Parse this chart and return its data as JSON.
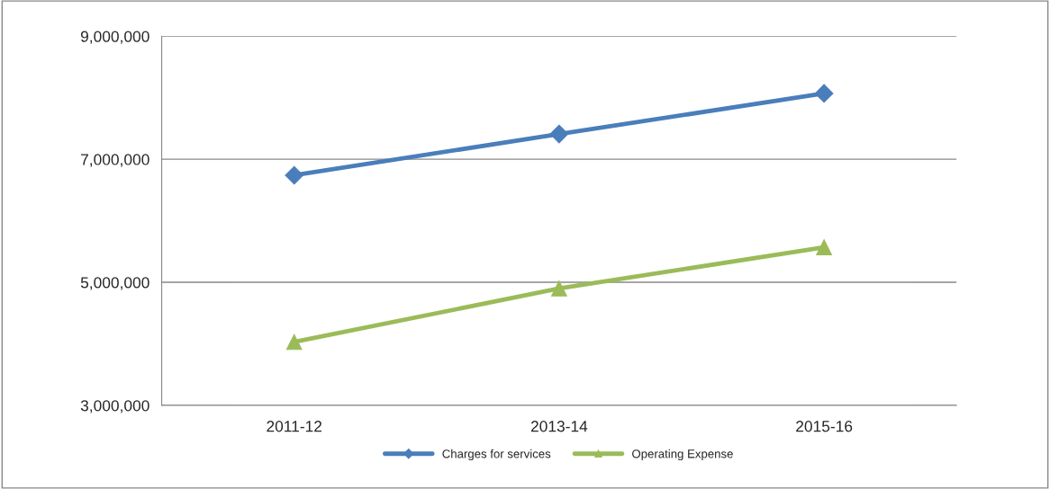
{
  "chart_data": {
    "type": "line",
    "categories": [
      "2011-12",
      "2013-14",
      "2015-16"
    ],
    "series": [
      {
        "name": "Charges for services",
        "color": "#4a7ebb",
        "marker": "diamond",
        "values": [
          6740000,
          7410000,
          8070000
        ]
      },
      {
        "name": "Operating Expense",
        "color": "#9bbb59",
        "marker": "triangle",
        "values": [
          4030000,
          4900000,
          5570000
        ]
      }
    ],
    "ylim": [
      3000000,
      9000000
    ],
    "yticks": [
      {
        "value": 3000000,
        "label": "3,000,000"
      },
      {
        "value": 5000000,
        "label": "5,000,000"
      },
      {
        "value": 7000000,
        "label": "7,000,000"
      },
      {
        "value": 9000000,
        "label": "9,000,000"
      }
    ],
    "grid": "y",
    "legend": "bottom",
    "line_style": "solid"
  }
}
